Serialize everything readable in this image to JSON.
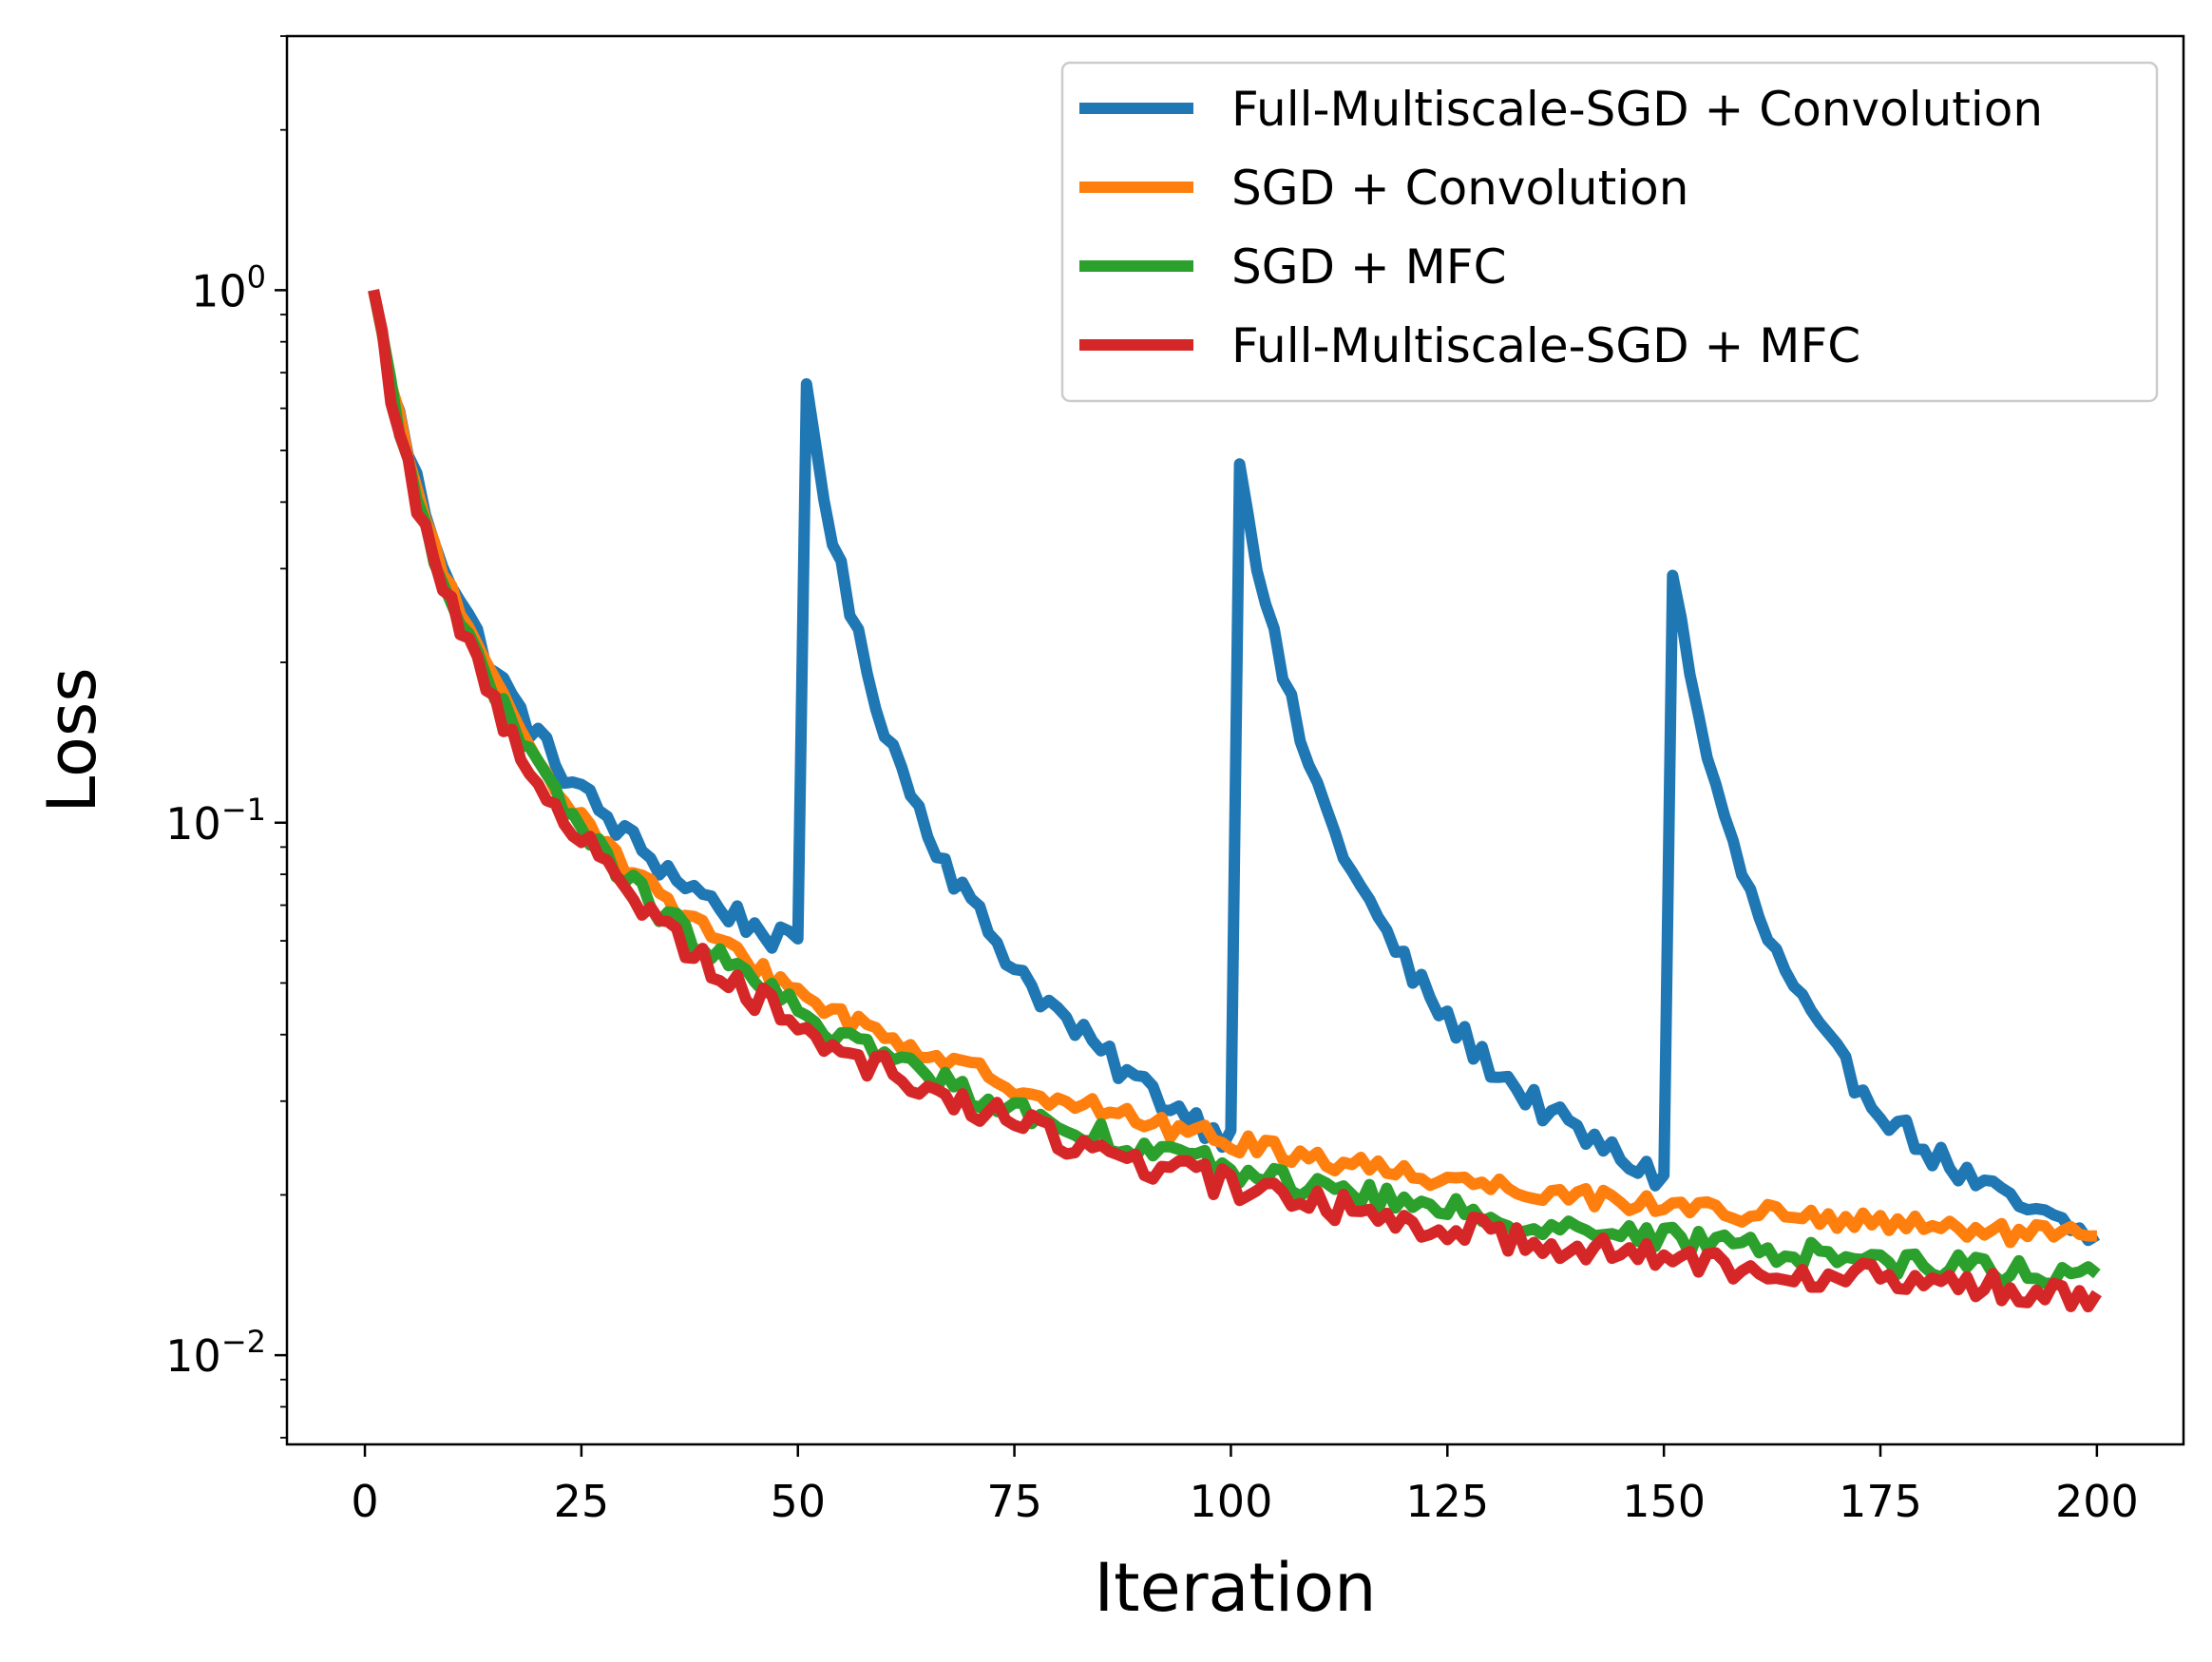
{
  "chart_data": {
    "type": "line",
    "title": "",
    "xlabel": "Iteration",
    "ylabel": "Loss",
    "yscale": "log",
    "xlim": [
      -9,
      210
    ],
    "ylim": [
      0.0068,
      3.0
    ],
    "x_ticks": [
      0,
      25,
      50,
      75,
      100,
      125,
      150,
      175,
      200
    ],
    "x_tick_labels": [
      "0",
      "25",
      "50",
      "75",
      "100",
      "125",
      "150",
      "175",
      "200"
    ],
    "y_ticks": [
      {
        "value": 1.0,
        "base": "10",
        "exp": "0"
      },
      {
        "value": 0.1,
        "base": "10",
        "exp": "−1"
      },
      {
        "value": 0.01,
        "base": "10",
        "exp": "−2"
      }
    ],
    "legend_position": "upper right",
    "series": [
      {
        "name": "Full-Multiscale-SGD + Convolution",
        "color": "#1f77b4",
        "curve": "restart",
        "start": 1.0,
        "tail": 0.0205,
        "tau": 6.8,
        "noise": 0.06,
        "restarts": [
          {
            "at": 51,
            "peak": 0.67
          },
          {
            "at": 101,
            "peak": 0.5
          },
          {
            "at": 151,
            "peak": 0.3
          }
        ],
        "end_iter": 200,
        "floor": 0.0095
      },
      {
        "name": "SGD + Convolution",
        "color": "#ff7f0e",
        "curve": "decay",
        "start": 1.0,
        "tail": 0.0118,
        "tau": 6.6,
        "noise": 0.045,
        "end_iter": 200
      },
      {
        "name": "SGD + MFC",
        "color": "#2ca02c",
        "curve": "decay",
        "start": 1.0,
        "tail": 0.0095,
        "tau": 6.4,
        "noise": 0.055,
        "end_iter": 200
      },
      {
        "name": "Full-Multiscale-SGD + MFC",
        "color": "#d62728",
        "curve": "decay",
        "start": 1.0,
        "tail": 0.0086,
        "tau": 6.2,
        "noise": 0.065,
        "end_iter": 200
      }
    ]
  }
}
